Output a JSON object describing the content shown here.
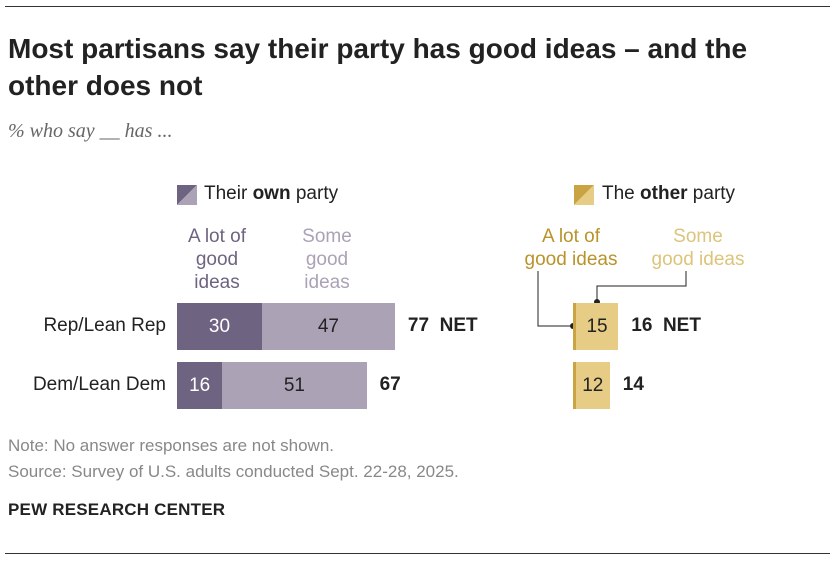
{
  "title": "Most partisans say their party has good ideas – and the other does not",
  "subtitle": "% who say __ has ...",
  "legend": {
    "own": {
      "pre": "Their ",
      "bold": "own",
      "post": " party"
    },
    "other": {
      "pre": "The ",
      "bold": "other",
      "post": " party"
    }
  },
  "column_headers": {
    "own_lot": [
      "A lot of",
      "good",
      "ideas"
    ],
    "own_some": [
      "Some",
      "good",
      "ideas"
    ],
    "other_lot": [
      "A lot of",
      "good ideas"
    ],
    "other_some": [
      "Some",
      "good ideas"
    ]
  },
  "colors": {
    "own_lot": "#6e6381",
    "own_some": "#aba2b6",
    "other_lot": "#caa442",
    "other_some": "#e6cc85",
    "other_lot_text": "#b9932a",
    "other_some_text": "#dcc47a"
  },
  "chart_data": {
    "type": "bar",
    "stacked": true,
    "categories": [
      "Rep/Lean Rep",
      "Dem/Lean Dem"
    ],
    "panels": [
      {
        "name": "Their own party",
        "series": [
          {
            "name": "A lot of good ideas",
            "values": [
              30,
              16
            ]
          },
          {
            "name": "Some good ideas",
            "values": [
              47,
              51
            ]
          }
        ],
        "net": [
          "77",
          "67"
        ],
        "net_label": "NET"
      },
      {
        "name": "The other party",
        "series": [
          {
            "name": "A lot of good ideas",
            "values": [
              1,
              1
            ],
            "labels": [
              "",
              ""
            ]
          },
          {
            "name": "Some good ideas",
            "values": [
              15,
              12
            ]
          }
        ],
        "net": [
          "16",
          "14"
        ],
        "net_label": "NET"
      }
    ]
  },
  "notes": {
    "note": "Note: No answer responses are not shown.",
    "source": "Source: Survey of U.S. adults conducted Sept. 22-28, 2025."
  },
  "brand": "PEW RESEARCH CENTER"
}
